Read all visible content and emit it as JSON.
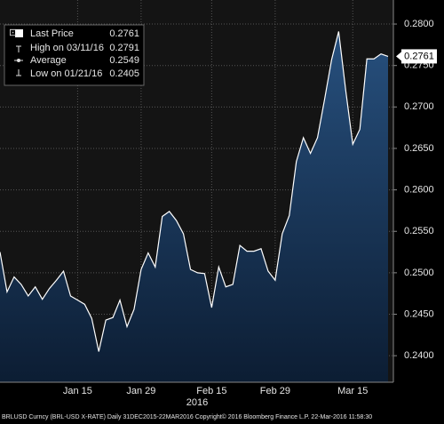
{
  "chart_data": {
    "type": "area",
    "categories": [
      null,
      null,
      null,
      null,
      null,
      null,
      null,
      null,
      null,
      null,
      null,
      "Jan 15",
      null,
      null,
      null,
      null,
      null,
      null,
      null,
      null,
      "Jan 29",
      null,
      null,
      null,
      null,
      null,
      null,
      null,
      null,
      null,
      "Feb 15",
      null,
      null,
      null,
      null,
      null,
      null,
      null,
      null,
      "Feb 29",
      null,
      null,
      null,
      null,
      null,
      null,
      null,
      null,
      null,
      null,
      "Mar 15",
      null,
      null,
      null,
      null,
      null
    ],
    "values": [
      0.2525,
      0.2477,
      0.2495,
      0.2486,
      0.2472,
      0.2483,
      0.2468,
      0.2481,
      0.2491,
      0.2502,
      0.2472,
      0.2467,
      0.2462,
      0.2445,
      0.2405,
      0.2443,
      0.2446,
      0.2467,
      0.2435,
      0.2456,
      0.2504,
      0.2524,
      0.2507,
      0.2568,
      0.2574,
      0.2563,
      0.2547,
      0.2504,
      0.25,
      0.2499,
      0.2458,
      0.2507,
      0.2483,
      0.2486,
      0.2533,
      0.2526,
      0.2526,
      0.2529,
      0.2502,
      0.2491,
      0.2547,
      0.2569,
      0.2634,
      0.2663,
      0.2644,
      0.2663,
      0.2709,
      0.2757,
      0.2791,
      0.272,
      0.2655,
      0.2673,
      0.2758,
      0.2758,
      0.2764,
      0.2761
    ],
    "color": "#ffffff",
    "ylim": [
      0.2368,
      0.2829
    ],
    "yticks": [
      {
        "value": 0.24,
        "label": "0.2400"
      },
      {
        "value": 0.245,
        "label": "0.2450"
      },
      {
        "value": 0.25,
        "label": "0.2500"
      },
      {
        "value": 0.255,
        "label": "0.2550"
      },
      {
        "value": 0.26,
        "label": "0.2600"
      },
      {
        "value": 0.265,
        "label": "0.2650"
      },
      {
        "value": 0.27,
        "label": "0.2700"
      },
      {
        "value": 0.275,
        "label": "0.2750"
      },
      {
        "value": 0.28,
        "label": "0.2800"
      }
    ],
    "grid": true,
    "year_label": "2016",
    "legend_items": [
      {
        "label": "Last Price",
        "value": "0.2761"
      },
      {
        "label": "High on 03/11/16",
        "value": "0.2791"
      },
      {
        "label": "Average",
        "value": "0.2549"
      },
      {
        "label": "Low on 01/21/16",
        "value": "0.2405"
      }
    ],
    "footer": "BRLUSD Curncy (BRL-USD X-RATE) Daily 31DEC2015-22MAR2016 Copyright© 2016 Bloomberg Finance L.P. 22-Mar-2016 11:58:30"
  }
}
